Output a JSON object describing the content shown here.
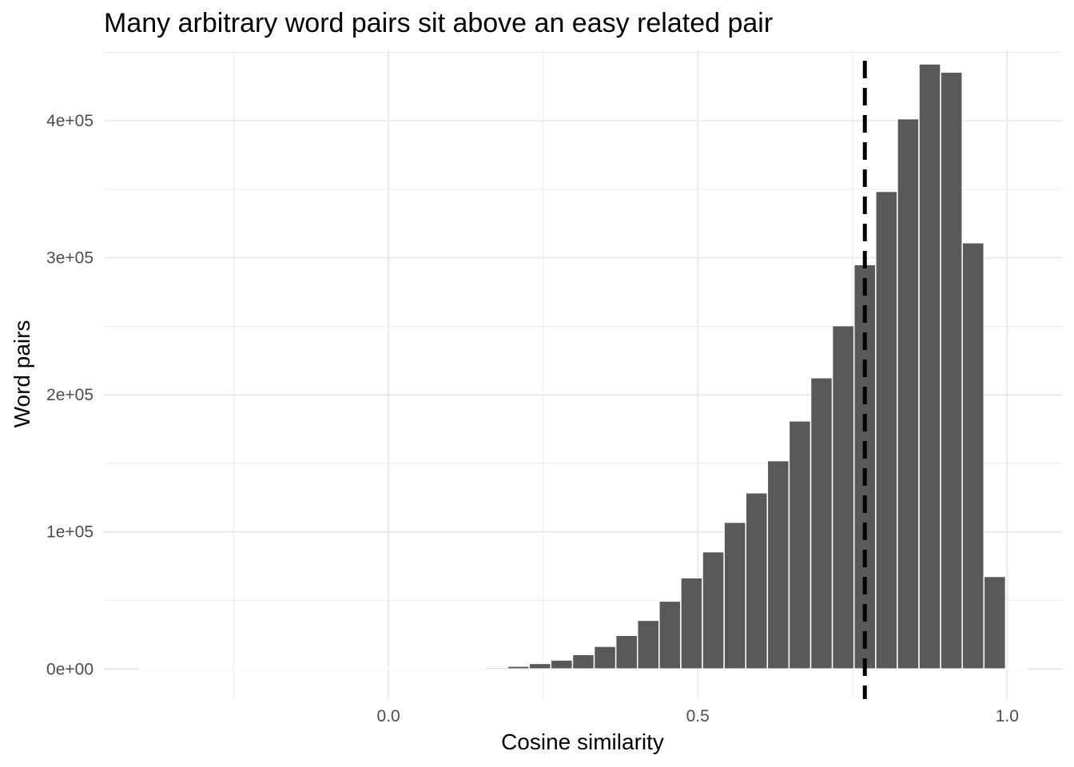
{
  "chart_data": {
    "type": "bar",
    "title": "Many arbitrary word pairs sit above an easy related pair",
    "xlabel": "Cosine similarity",
    "ylabel": "Word pairs",
    "xlim": [
      -0.46,
      1.09
    ],
    "ylim": [
      -22000,
      452000
    ],
    "x_ticks": [
      {
        "value": 0.0,
        "label": "0.0"
      },
      {
        "value": 0.5,
        "label": "0.5"
      },
      {
        "value": 1.0,
        "label": "1.0"
      }
    ],
    "y_ticks": [
      {
        "value": 0,
        "label": "0e+00"
      },
      {
        "value": 100000,
        "label": "1e+05"
      },
      {
        "value": 200000,
        "label": "2e+05"
      },
      {
        "value": 300000,
        "label": "3e+05"
      },
      {
        "value": 400000,
        "label": "4e+05"
      }
    ],
    "bin_width": 0.035,
    "bar_color": "#595959",
    "reference_line": {
      "x": 0.77,
      "style": "dashed",
      "color": "#000000"
    },
    "grid": true,
    "bins": [
      {
        "center": -0.385,
        "value": 0
      },
      {
        "center": -0.35,
        "value": 0
      },
      {
        "center": -0.315,
        "value": 0
      },
      {
        "center": -0.28,
        "value": 0
      },
      {
        "center": -0.245,
        "value": 0
      },
      {
        "center": -0.21,
        "value": 0
      },
      {
        "center": -0.175,
        "value": 0
      },
      {
        "center": -0.14,
        "value": 0
      },
      {
        "center": -0.105,
        "value": 0
      },
      {
        "center": -0.07,
        "value": 0
      },
      {
        "center": -0.035,
        "value": 0
      },
      {
        "center": 0.0,
        "value": 0
      },
      {
        "center": 0.035,
        "value": 0
      },
      {
        "center": 0.07,
        "value": 0
      },
      {
        "center": 0.105,
        "value": 0
      },
      {
        "center": 0.14,
        "value": 300
      },
      {
        "center": 0.175,
        "value": 1000
      },
      {
        "center": 0.21,
        "value": 2000
      },
      {
        "center": 0.245,
        "value": 4000
      },
      {
        "center": 0.28,
        "value": 6500
      },
      {
        "center": 0.315,
        "value": 10500
      },
      {
        "center": 0.35,
        "value": 16500
      },
      {
        "center": 0.385,
        "value": 24500
      },
      {
        "center": 0.42,
        "value": 35500
      },
      {
        "center": 0.455,
        "value": 49500
      },
      {
        "center": 0.49,
        "value": 66500
      },
      {
        "center": 0.525,
        "value": 85500
      },
      {
        "center": 0.56,
        "value": 107000
      },
      {
        "center": 0.595,
        "value": 128500
      },
      {
        "center": 0.63,
        "value": 152000
      },
      {
        "center": 0.665,
        "value": 181000
      },
      {
        "center": 0.7,
        "value": 212500
      },
      {
        "center": 0.735,
        "value": 250500
      },
      {
        "center": 0.77,
        "value": 295000
      },
      {
        "center": 0.805,
        "value": 348500
      },
      {
        "center": 0.84,
        "value": 401500
      },
      {
        "center": 0.875,
        "value": 441500
      },
      {
        "center": 0.91,
        "value": 435500
      },
      {
        "center": 0.945,
        "value": 311000
      },
      {
        "center": 0.98,
        "value": 67500
      },
      {
        "center": 1.015,
        "value": 0
      }
    ]
  }
}
